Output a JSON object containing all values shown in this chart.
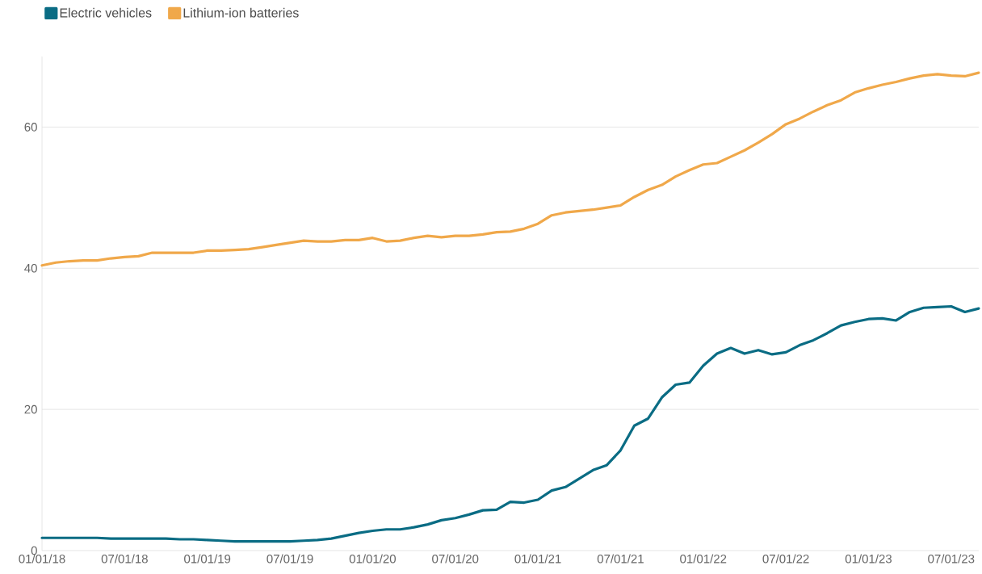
{
  "chart_data": {
    "type": "line",
    "x": [
      "2018-01",
      "2018-02",
      "2018-03",
      "2018-04",
      "2018-05",
      "2018-06",
      "2018-07",
      "2018-08",
      "2018-09",
      "2018-10",
      "2018-11",
      "2018-12",
      "2019-01",
      "2019-02",
      "2019-03",
      "2019-04",
      "2019-05",
      "2019-06",
      "2019-07",
      "2019-08",
      "2019-09",
      "2019-10",
      "2019-11",
      "2019-12",
      "2020-01",
      "2020-02",
      "2020-03",
      "2020-04",
      "2020-05",
      "2020-06",
      "2020-07",
      "2020-08",
      "2020-09",
      "2020-10",
      "2020-11",
      "2020-12",
      "2021-01",
      "2021-02",
      "2021-03",
      "2021-04",
      "2021-05",
      "2021-06",
      "2021-07",
      "2021-08",
      "2021-09",
      "2021-10",
      "2021-11",
      "2021-12",
      "2022-01",
      "2022-02",
      "2022-03",
      "2022-04",
      "2022-05",
      "2022-06",
      "2022-07",
      "2022-08",
      "2022-09",
      "2022-10",
      "2022-11",
      "2022-12",
      "2023-01",
      "2023-02",
      "2023-03",
      "2023-04",
      "2023-05",
      "2023-06",
      "2023-07",
      "2023-08",
      "2023-09"
    ],
    "series": [
      {
        "name": "Electric vehicles",
        "color": "#0a6c84",
        "values": [
          1.8,
          1.8,
          1.8,
          1.8,
          1.8,
          1.7,
          1.7,
          1.7,
          1.7,
          1.7,
          1.6,
          1.6,
          1.5,
          1.4,
          1.3,
          1.3,
          1.3,
          1.3,
          1.3,
          1.4,
          1.5,
          1.7,
          2.1,
          2.5,
          2.8,
          3.0,
          3.0,
          3.3,
          3.7,
          4.3,
          4.6,
          5.1,
          5.7,
          5.8,
          6.9,
          6.8,
          7.2,
          8.5,
          9.0,
          10.2,
          11.4,
          12.1,
          14.2,
          17.7,
          18.7,
          21.7,
          23.5,
          23.8,
          26.2,
          27.9,
          28.7,
          27.9,
          28.4,
          27.8,
          28.1,
          29.1,
          29.8,
          30.8,
          31.9,
          32.4,
          32.8,
          32.9,
          32.6,
          33.8,
          34.4,
          34.5,
          34.6,
          33.8,
          34.3
        ]
      },
      {
        "name": "Lithium-ion batteries",
        "color": "#f0a84a",
        "values": [
          40.4,
          40.8,
          41.0,
          41.1,
          41.1,
          41.4,
          41.6,
          41.7,
          42.2,
          42.2,
          42.2,
          42.2,
          42.5,
          42.5,
          42.6,
          42.7,
          43.0,
          43.3,
          43.6,
          43.9,
          43.8,
          43.8,
          44.0,
          44.0,
          44.3,
          43.8,
          43.9,
          44.3,
          44.6,
          44.4,
          44.6,
          44.6,
          44.8,
          45.1,
          45.2,
          45.6,
          46.3,
          47.5,
          47.9,
          48.1,
          48.3,
          48.6,
          48.9,
          50.1,
          51.1,
          51.8,
          53.0,
          53.9,
          54.7,
          54.9,
          55.8,
          56.7,
          57.8,
          59.0,
          60.4,
          61.2,
          62.2,
          63.1,
          63.8,
          64.9,
          65.5,
          66.0,
          66.4,
          66.9,
          67.3,
          67.5,
          67.3,
          67.2,
          67.7
        ]
      }
    ],
    "xlim": [
      "2018-01",
      "2023-09"
    ],
    "xticks": [
      {
        "value": "2018-01",
        "label": "01/01/18"
      },
      {
        "value": "2018-07",
        "label": "07/01/18"
      },
      {
        "value": "2019-01",
        "label": "01/01/19"
      },
      {
        "value": "2019-07",
        "label": "07/01/19"
      },
      {
        "value": "2020-01",
        "label": "01/01/20"
      },
      {
        "value": "2020-07",
        "label": "07/01/20"
      },
      {
        "value": "2021-01",
        "label": "01/01/21"
      },
      {
        "value": "2021-07",
        "label": "07/01/21"
      },
      {
        "value": "2022-01",
        "label": "01/01/22"
      },
      {
        "value": "2022-07",
        "label": "07/01/22"
      },
      {
        "value": "2023-01",
        "label": "01/01/23"
      },
      {
        "value": "2023-07",
        "label": "07/01/23"
      }
    ],
    "ylim": [
      0,
      70
    ],
    "yticks": [
      0,
      20,
      40,
      60
    ],
    "grid": "y",
    "legend": "top left",
    "marker": "none",
    "line_style": "solid"
  }
}
